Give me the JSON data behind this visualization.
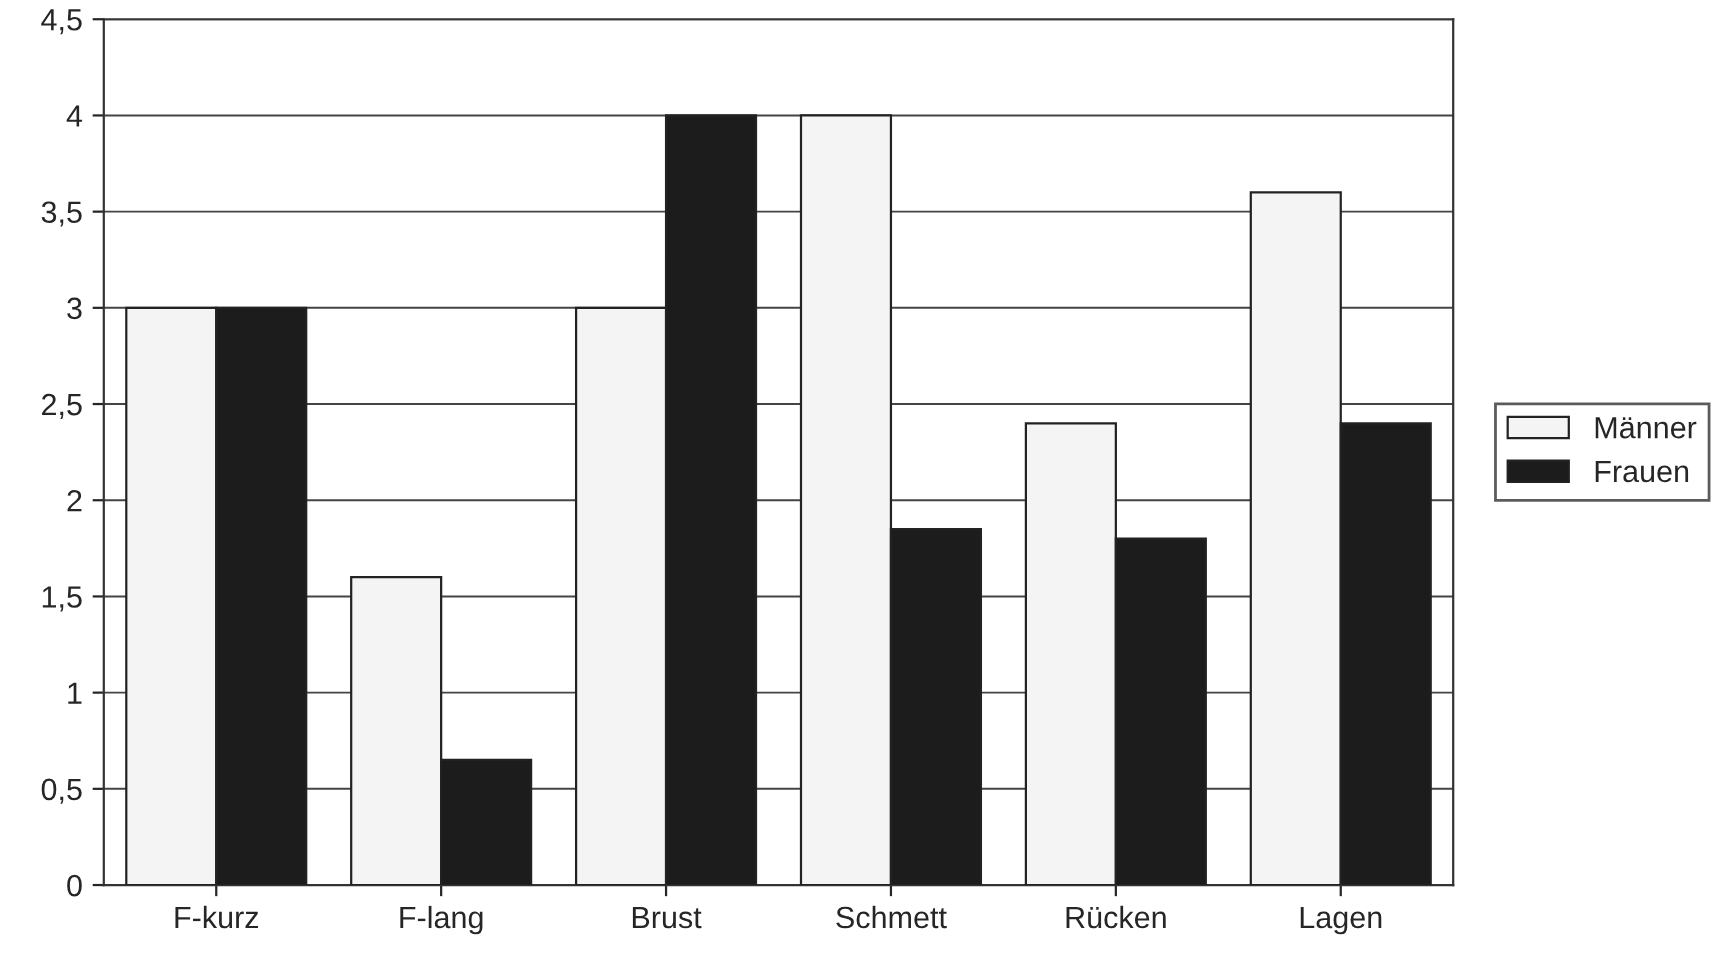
{
  "chart_data": {
    "type": "bar",
    "categories": [
      "F-kurz",
      "F-lang",
      "Brust",
      "Schmett",
      "Rücken",
      "Lagen"
    ],
    "series": [
      {
        "name": "Männer",
        "color": "#f4f4f4",
        "values": [
          3,
          1.6,
          3,
          4,
          2.4,
          3.6
        ]
      },
      {
        "name": "Frauen",
        "color": "#1c1c1c",
        "values": [
          3,
          0.65,
          4,
          1.85,
          1.8,
          2.4
        ]
      }
    ],
    "ylim": [
      0,
      4.5
    ],
    "yticks": [
      0,
      {
        "value": 0.5,
        "label": "0,5"
      },
      1,
      {
        "value": 1.5,
        "label": "1,5"
      },
      2,
      {
        "value": 2.5,
        "label": "2,5"
      },
      3,
      {
        "value": 3.5,
        "label": "3,5"
      },
      4,
      {
        "value": 4.5,
        "label": "4,5"
      }
    ],
    "grid": "y",
    "legend": "right"
  }
}
